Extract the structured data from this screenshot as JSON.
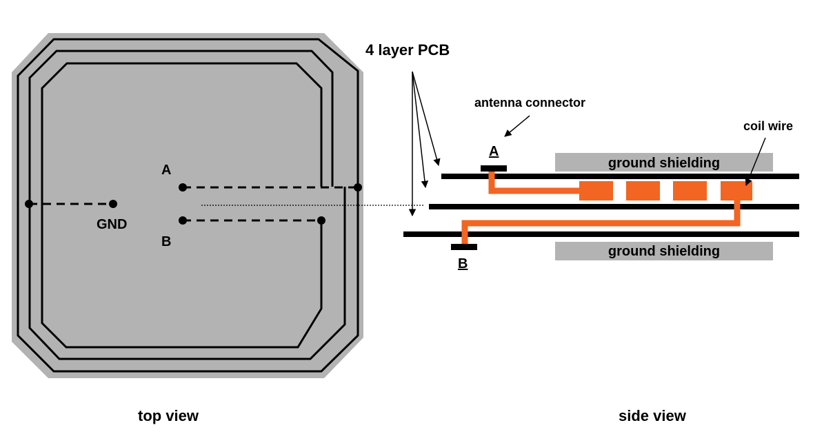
{
  "labels": {
    "pcb_layers": "4 layer PCB",
    "antenna_connector": "antenna connector",
    "coil_wire": "coil wire",
    "ground_shielding_top": "ground shielding",
    "ground_shielding_bottom": "ground shielding",
    "top_view": "top view",
    "side_view": "side view",
    "gnd": "GND",
    "terminal_a_top": "A",
    "terminal_b_top": "B",
    "terminal_a_side": "A",
    "terminal_b_side": "B"
  },
  "colors": {
    "shield_gray": "#b3b3b3",
    "coil_orange": "#f26522",
    "trace_black": "#000000",
    "background": "#ffffff"
  }
}
